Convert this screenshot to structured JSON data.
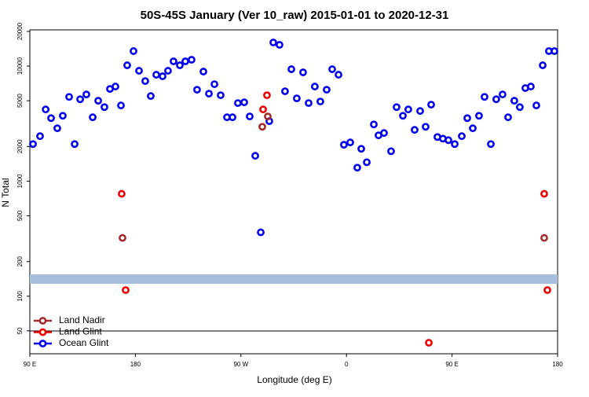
{
  "chart_data": {
    "type": "scatter",
    "title": "50S-45S January (Ver 10_raw)   2015-01-01 to 2020-12-31",
    "xlabel": "Longitude (deg E)",
    "ylabel": "N Total",
    "xlim": [
      90,
      540
    ],
    "xticks": [
      {
        "value": 90,
        "label": "90 E"
      },
      {
        "value": 180,
        "label": "180"
      },
      {
        "value": 270,
        "label": "90 W"
      },
      {
        "value": 360,
        "label": "0"
      },
      {
        "value": 450,
        "label": "90 E"
      },
      {
        "value": 540,
        "label": "180"
      }
    ],
    "ylim": [
      31.6,
      20000
    ],
    "ylog": true,
    "yticks": [
      50,
      100,
      200,
      500,
      1000,
      2000,
      5000,
      10000,
      20000
    ],
    "shaded_band": [
      128,
      155
    ],
    "shaded_band_color": "#a8bfdc",
    "legend": "lower left",
    "series": [
      {
        "name": "Land Nadir",
        "color": "#a52a2a",
        "x": [
          169.0,
          288.2,
          292.9,
          528.6
        ],
        "values": [
          321,
          2970,
          3650,
          321
        ]
      },
      {
        "name": "Land Glint",
        "color": "#ee0000",
        "x": [
          168.3,
          171.7,
          288.9,
          292.2,
          430.2,
          528.6,
          531.3
        ],
        "values": [
          776,
          113,
          4200,
          5580,
          39.4,
          776,
          113
        ]
      },
      {
        "name": "Ocean Glint",
        "color": "#0000ee",
        "x": [
          92.7,
          98.7,
          103.5,
          108.1,
          113.4,
          118.1,
          123.5,
          128.2,
          132.9,
          138.2,
          143.6,
          148.3,
          153.6,
          158.3,
          163.0,
          167.7,
          173.0,
          178.4,
          183.1,
          188.4,
          193.1,
          197.8,
          203.2,
          207.8,
          212.5,
          217.9,
          222.6,
          227.9,
          232.6,
          238.0,
          242.7,
          247.4,
          252.7,
          258.1,
          262.8,
          267.4,
          272.8,
          277.5,
          282.2,
          286.9,
          294.2,
          297.6,
          302.9,
          307.6,
          313.0,
          317.6,
          323.0,
          327.7,
          333.0,
          337.7,
          343.1,
          347.8,
          353.2,
          357.8,
          363.2,
          369.2,
          372.6,
          377.3,
          383.3,
          387.3,
          392.0,
          398.0,
          402.7,
          408.1,
          412.7,
          418.1,
          422.8,
          427.5,
          432.2,
          437.5,
          442.2,
          446.9,
          452.3,
          458.3,
          463.0,
          467.7,
          473.0,
          477.7,
          483.1,
          487.7,
          493.1,
          497.8,
          503.1,
          507.8,
          512.5,
          517.2,
          521.9,
          527.3,
          532.6,
          537.3
        ],
        "values": [
          2100,
          2460,
          4200,
          3530,
          2880,
          3700,
          5400,
          2100,
          5150,
          5670,
          3590,
          5000,
          4400,
          6330,
          6640,
          4550,
          10160,
          13500,
          9100,
          7410,
          5490,
          8410,
          8150,
          9100,
          11000,
          10160,
          11000,
          11350,
          6230,
          8960,
          5760,
          6960,
          5580,
          3590,
          3590,
          4770,
          4840,
          3650,
          1660,
          359,
          3320,
          16040,
          15300,
          6040,
          9390,
          5240,
          8820,
          4770,
          6640,
          4920,
          6230,
          9390,
          8410,
          2070,
          2170,
          1310,
          1910,
          1460,
          3110,
          2500,
          2620,
          1820,
          4400,
          3700,
          4200,
          2790,
          4070,
          2970,
          4620,
          2420,
          2340,
          2270,
          2100,
          2460,
          3530,
          2880,
          3700,
          5400,
          2100,
          5150,
          5670,
          3590,
          5000,
          4400,
          6440,
          6640,
          4550,
          10160,
          13500,
          13500
        ]
      }
    ]
  }
}
